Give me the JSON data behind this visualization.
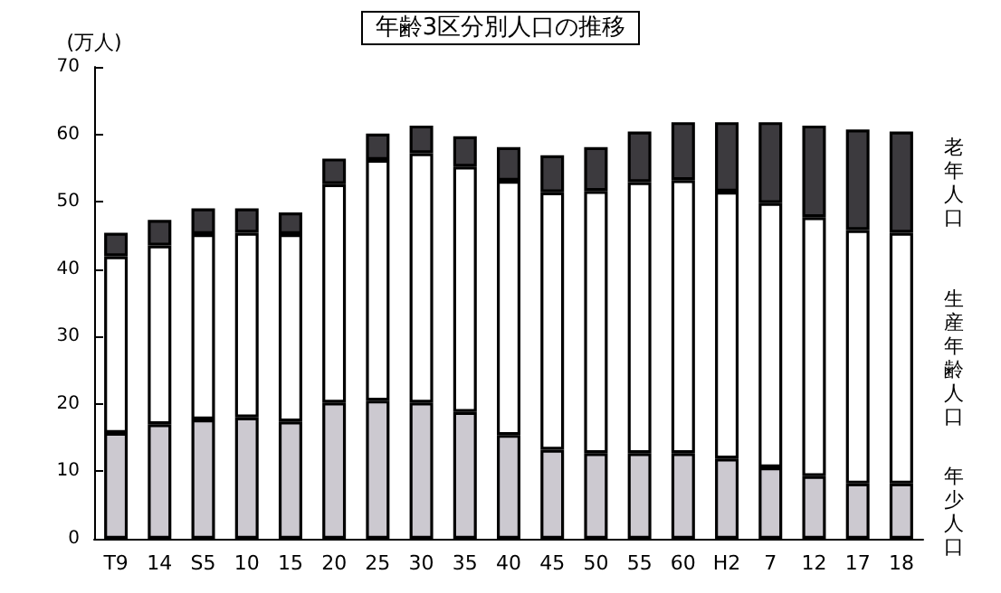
{
  "chart_data": {
    "type": "bar",
    "title": "年齢3区分別人口の推移",
    "ylabel": "(万人)",
    "stacked": true,
    "grid": false,
    "categories": [
      "T9",
      "14",
      "S5",
      "10",
      "15",
      "20",
      "25",
      "30",
      "35",
      "40",
      "45",
      "50",
      "55",
      "60",
      "H2",
      "7",
      "12",
      "17",
      "18"
    ],
    "series": [
      {
        "name": "年少人口",
        "color": "#ccc9d0",
        "values": [
          15.7,
          17.0,
          17.7,
          18.0,
          17.4,
          20.2,
          20.5,
          20.2,
          18.8,
          15.4,
          13.2,
          12.7,
          12.7,
          12.7,
          11.9,
          10.6,
          9.3,
          8.2,
          8.2
        ]
      },
      {
        "name": "生産年齢人口",
        "color": "#ffffff",
        "values": [
          26.2,
          26.5,
          27.5,
          27.4,
          27.8,
          32.4,
          35.7,
          37.0,
          36.4,
          37.7,
          38.2,
          38.9,
          40.2,
          40.5,
          39.6,
          39.2,
          38.4,
          37.6,
          37.2
        ]
      },
      {
        "name": "老年人口",
        "color": "#3c3a3e",
        "values": [
          3.5,
          3.8,
          3.8,
          3.6,
          3.2,
          3.8,
          3.9,
          4.1,
          4.5,
          5.0,
          5.5,
          6.5,
          7.5,
          8.6,
          10.3,
          12.0,
          13.6,
          14.9,
          15.0
        ]
      }
    ],
    "ylim": [
      0,
      70
    ],
    "yticks": [
      0,
      10,
      20,
      30,
      40,
      50,
      60,
      70
    ]
  }
}
